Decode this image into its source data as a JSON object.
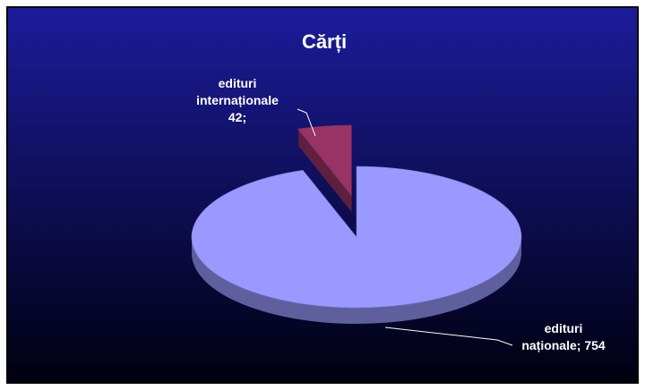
{
  "chart_data": {
    "type": "pie",
    "title": "Cărți",
    "categories": [
      "edituri internaționale",
      "edituri naționale"
    ],
    "values": [
      42,
      754
    ],
    "value_labels": [
      "edituri internaționale 42;",
      "edituri naționale; 754"
    ],
    "colors": [
      "#993366",
      "#9999ff"
    ],
    "explode": [
      true,
      false
    ]
  }
}
